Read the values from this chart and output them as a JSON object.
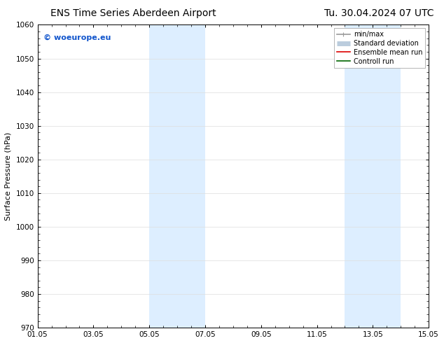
{
  "title_left": "ENS Time Series Aberdeen Airport",
  "title_right": "Tu. 30.04.2024 07 UTC",
  "ylabel": "Surface Pressure (hPa)",
  "ylim": [
    970,
    1060
  ],
  "yticks": [
    970,
    980,
    990,
    1000,
    1010,
    1020,
    1030,
    1040,
    1050,
    1060
  ],
  "xtick_labels": [
    "01.05",
    "03.05",
    "05.05",
    "07.05",
    "09.05",
    "11.05",
    "13.05",
    "15.05"
  ],
  "xtick_positions": [
    0,
    2,
    4,
    6,
    8,
    10,
    12,
    14
  ],
  "shaded_bands": [
    {
      "x_start": 4,
      "x_end": 5.5,
      "color": "#ddeeff"
    },
    {
      "x_start": 5.5,
      "x_end": 6,
      "color": "#ddeeff"
    },
    {
      "x_start": 10.5,
      "x_end": 12,
      "color": "#ddeeff"
    },
    {
      "x_start": 12,
      "x_end": 13,
      "color": "#ddeeff"
    }
  ],
  "shaded_bands2": [
    {
      "x_start": 4.0,
      "x_end": 6.0,
      "color": "#ddeeff"
    },
    {
      "x_start": 11.0,
      "x_end": 13.0,
      "color": "#ddeeff"
    }
  ],
  "watermark_text": "© woeurope.eu",
  "watermark_color": "#1155cc",
  "legend_entries": [
    {
      "label": "min/max",
      "color": "#999999",
      "linewidth": 1.2
    },
    {
      "label": "Standard deviation",
      "color": "#bbccdd",
      "linewidth": 5
    },
    {
      "label": "Ensemble mean run",
      "color": "#dd0000",
      "linewidth": 1.2
    },
    {
      "label": "Controll run",
      "color": "#006600",
      "linewidth": 1.2
    }
  ],
  "background_color": "#ffffff",
  "grid_color": "#dddddd",
  "title_fontsize": 10,
  "label_fontsize": 8,
  "tick_fontsize": 7.5,
  "legend_fontsize": 7,
  "watermark_fontsize": 8
}
